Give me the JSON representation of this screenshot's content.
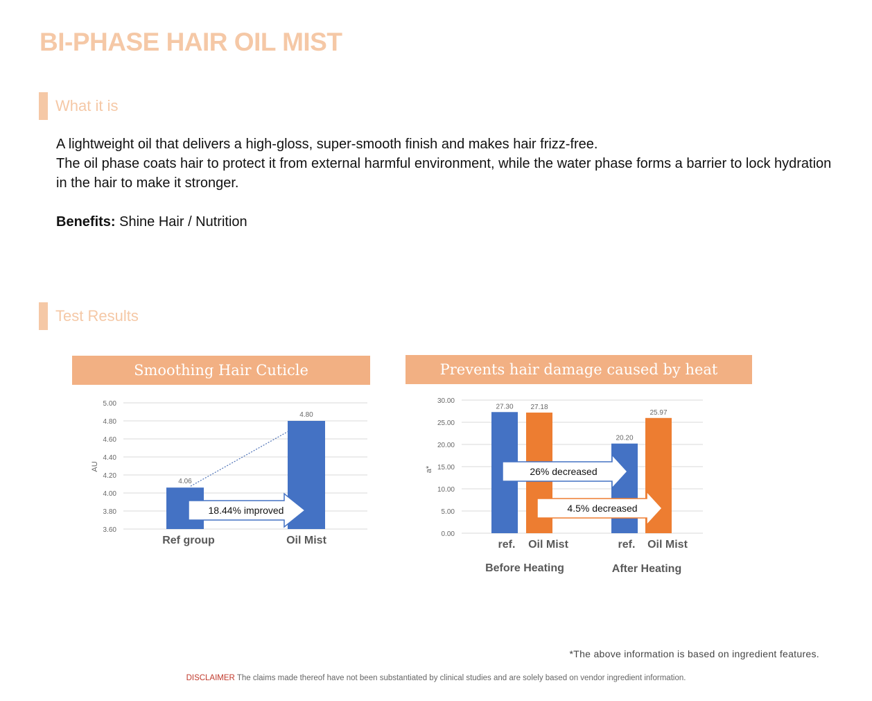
{
  "page_title": "BI-PHASE HAIR OIL MIST",
  "sections": {
    "what_it_is": "What it is",
    "test_results": "Test Results"
  },
  "description": {
    "line1": "A lightweight oil that delivers a high-gloss, super-smooth finish and makes hair frizz-free.",
    "line2": "The oil phase coats hair to protect it from external harmful environment, while the water phase forms a barrier to lock hydration in the hair to make it stronger."
  },
  "benefits": {
    "label": "Benefits:",
    "value": " Shine Hair / Nutrition"
  },
  "colors": {
    "accent": "#f5c8a6",
    "banner": "#f2b083",
    "blue": "#4472c4",
    "orange": "#ed7d31"
  },
  "chart_data": [
    {
      "type": "bar",
      "title": "Smoothing Hair Cuticle",
      "ylabel": "AU",
      "categories": [
        "Ref group",
        "Oil Mist"
      ],
      "values": [
        4.06,
        4.8
      ],
      "value_labels": [
        "4.06",
        "4.80"
      ],
      "ylim": [
        3.6,
        5.0
      ],
      "yticks": [
        "3.60",
        "3.80",
        "4.00",
        "4.20",
        "4.40",
        "4.60",
        "4.80",
        "5.00"
      ],
      "annotation": "18.44% improved",
      "trendline": "dotted",
      "grid": true
    },
    {
      "type": "bar",
      "title": "Prevents hair damage caused by heat",
      "ylabel": "a*",
      "groups": [
        "Before Heating",
        "After Heating"
      ],
      "bar_labels": [
        "ref.",
        "Oil Mist",
        "ref.",
        "Oil Mist"
      ],
      "series": [
        {
          "values": [
            27.3,
            20.2
          ]
        },
        {
          "values": [
            27.18,
            25.97
          ]
        }
      ],
      "value_labels": [
        "27.30",
        "27.18",
        "20.20",
        "25.97"
      ],
      "ylim": [
        0,
        30
      ],
      "yticks": [
        "0.00",
        "5.00",
        "10.00",
        "15.00",
        "20.00",
        "25.00",
        "30.00"
      ],
      "annotations": [
        "26% decreased",
        "4.5% decreased"
      ],
      "grid": true
    }
  ],
  "footnote": "*The above information is based on ingredient features.",
  "disclaimer": {
    "label": "DISCLAIMER",
    "text": " The claims made thereof have not been substantiated by clinical studies and are solely based on vendor ingredient information."
  }
}
